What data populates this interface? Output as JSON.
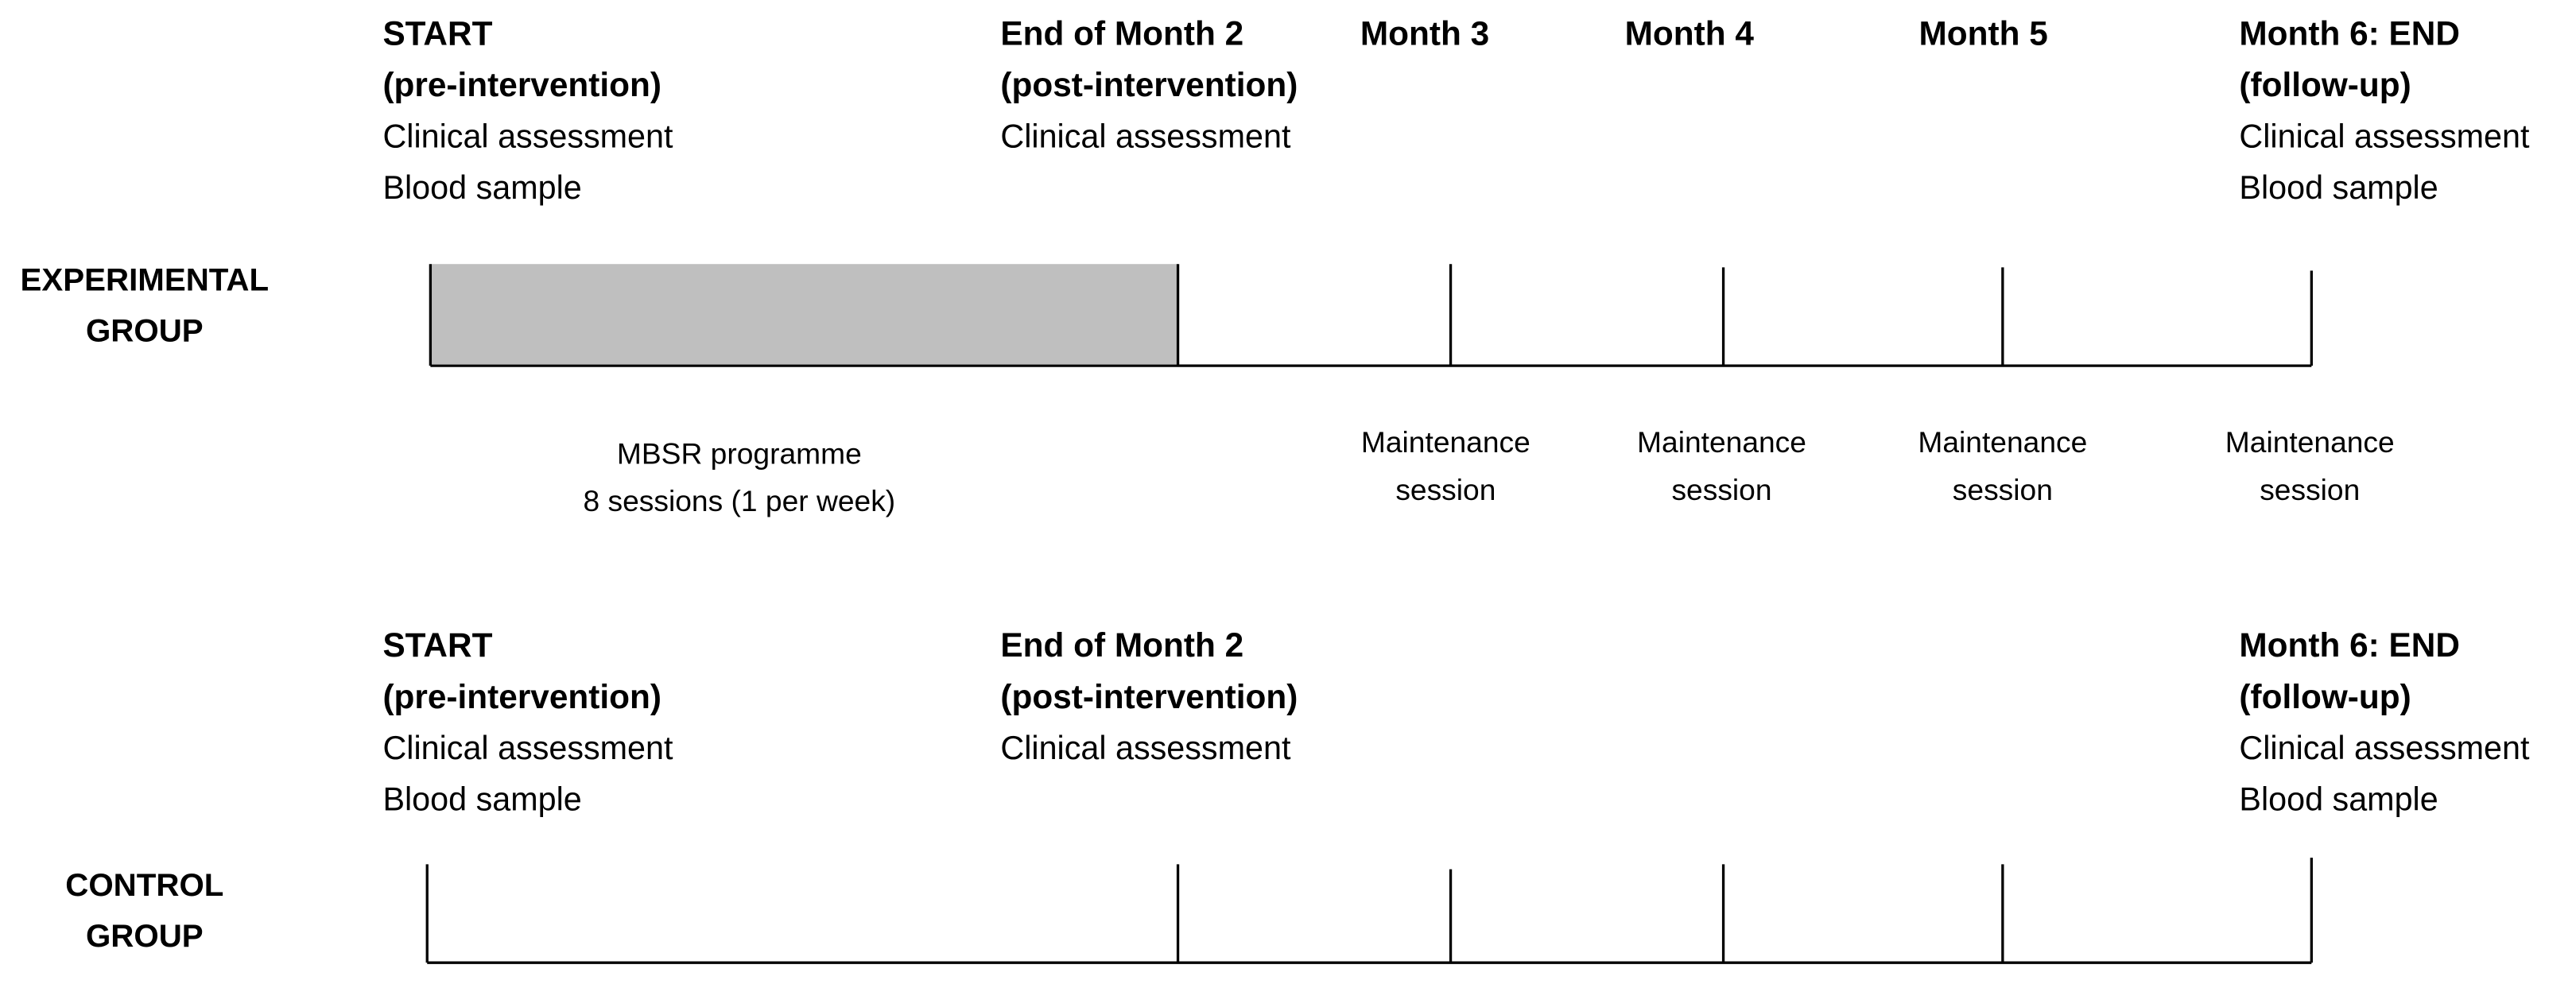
{
  "groups": [
    {
      "label": [
        "EXPERIMENTAL",
        "GROUP"
      ],
      "timepoints": [
        {
          "title": [
            "START",
            "(pre-intervention)"
          ],
          "items": [
            "Clinical assessment",
            "Blood sample"
          ]
        },
        {
          "title": [
            "End of Month 2",
            "(post-intervention)"
          ],
          "items": [
            "Clinical assessment"
          ]
        },
        {
          "title": [
            "Month 3"
          ],
          "items": []
        },
        {
          "title": [
            "Month 4"
          ],
          "items": []
        },
        {
          "title": [
            "Month 5"
          ],
          "items": []
        },
        {
          "title": [
            "Month 6: END",
            "(follow-up)"
          ],
          "items": [
            "Clinical assessment",
            "Blood sample"
          ]
        }
      ],
      "sessions": [
        [
          "MBSR programme",
          "8 sessions (1 per week)"
        ],
        [
          "Maintenance",
          "session"
        ],
        [
          "Maintenance",
          "session"
        ],
        [
          "Maintenance",
          "session"
        ],
        [
          "Maintenance",
          "session"
        ]
      ]
    },
    {
      "label": [
        "CONTROL",
        "GROUP"
      ],
      "timepoints": [
        {
          "title": [
            "START",
            "(pre-intervention)"
          ],
          "items": [
            "Clinical assessment",
            "Blood sample"
          ]
        },
        {
          "title": [
            "End of Month 2",
            "(post-intervention)"
          ],
          "items": [
            "Clinical assessment"
          ]
        },
        {
          "title": [
            "Month 6: END",
            "(follow-up)"
          ],
          "items": [
            "Clinical assessment",
            "Blood sample"
          ]
        }
      ],
      "sessions": []
    }
  ]
}
